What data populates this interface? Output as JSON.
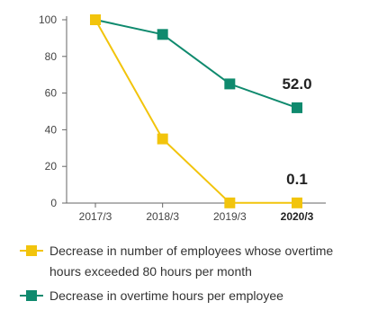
{
  "chart_data": {
    "type": "line",
    "categories": [
      "2017/3",
      "2018/3",
      "2019/3",
      "2020/3"
    ],
    "highlight_category": "2020/3",
    "ylim": [
      0,
      100
    ],
    "yticks": [
      0,
      20,
      40,
      60,
      80,
      100
    ],
    "grid": false,
    "legend_position": "bottom",
    "series": [
      {
        "name": "Decrease in number of employees whose overtime hours exceeded 80 hours per month",
        "color": "#f2c40c",
        "values": [
          100,
          35,
          0.1,
          0.1
        ],
        "end_label": "0.1"
      },
      {
        "name": "Decrease in overtime hours per employee",
        "color": "#0f8a6e",
        "values": [
          100,
          92,
          65,
          52.0
        ],
        "end_label": "52.0"
      }
    ]
  },
  "legend": {
    "items": [
      {
        "label_line1": "Decrease in number of employees whose overtime",
        "label_line2": "hours exceeded 80 hours per month",
        "color": "#f2c40c"
      },
      {
        "label_line1": "Decrease in overtime hours per employee",
        "color": "#0f8a6e"
      }
    ]
  }
}
